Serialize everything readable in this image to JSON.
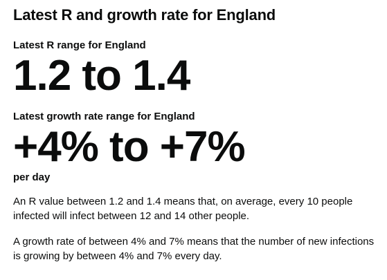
{
  "heading": "Latest R and growth rate for England",
  "r_stat": {
    "label": "Latest R range for England",
    "value": "1.2 to 1.4"
  },
  "growth_stat": {
    "label": "Latest growth rate range for England",
    "value": "+4% to +7%",
    "unit": "per day"
  },
  "explanations": {
    "r_explanation": "An R value between 1.2 and 1.4 means that, on average, every 10 people infected will infect between 12 and 14 other people.",
    "growth_explanation": "A growth rate of between 4% and 7% means that the number of new infections is growing by between 4% and 7% every day."
  }
}
